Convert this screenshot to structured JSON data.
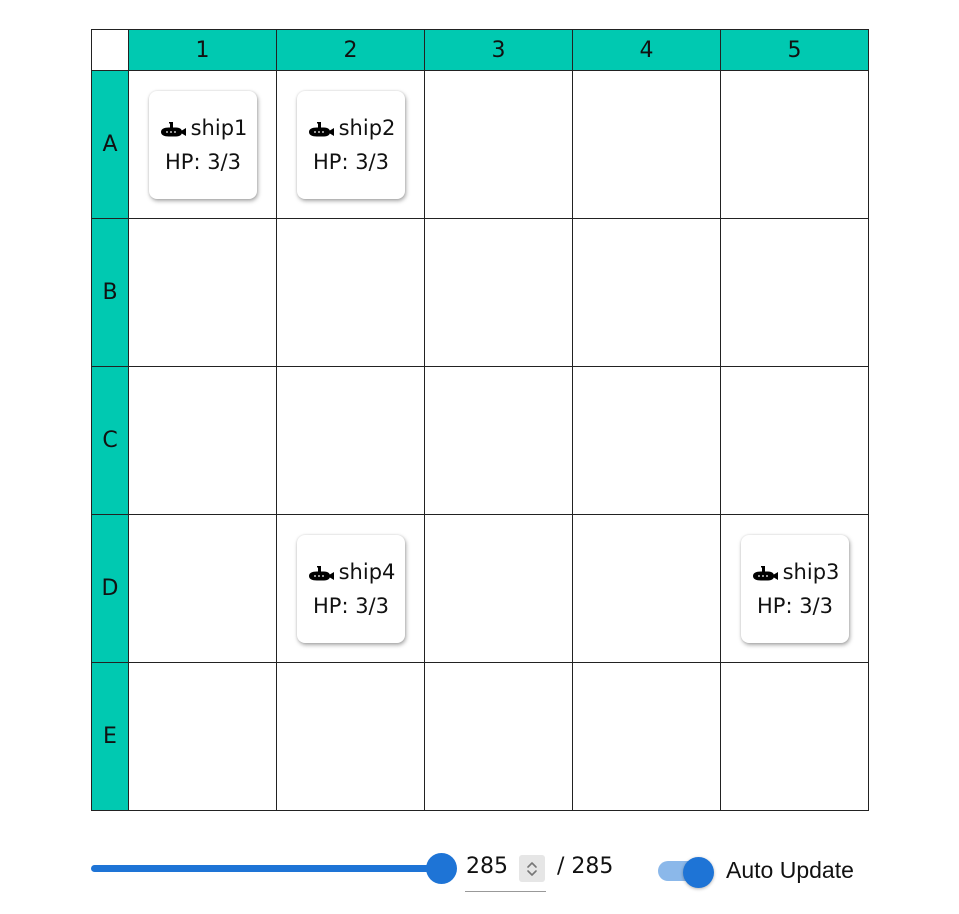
{
  "board": {
    "columns": [
      "1",
      "2",
      "3",
      "4",
      "5"
    ],
    "rows": [
      "A",
      "B",
      "C",
      "D",
      "E"
    ]
  },
  "ships": [
    {
      "name": "ship1",
      "hp": "HP: 3/3",
      "row": "A",
      "col": "1",
      "icon": "submarine-icon"
    },
    {
      "name": "ship2",
      "hp": "HP: 3/3",
      "row": "A",
      "col": "2",
      "icon": "submarine-icon"
    },
    {
      "name": "ship4",
      "hp": "HP: 3/3",
      "row": "D",
      "col": "2",
      "icon": "submarine-icon"
    },
    {
      "name": "ship3",
      "hp": "HP: 3/3",
      "row": "D",
      "col": "5",
      "icon": "submarine-icon"
    }
  ],
  "controls": {
    "step_value": "285",
    "step_total": "/ 285",
    "slider_fraction": 1.0,
    "auto_update_label": "Auto Update",
    "auto_update_on": true
  },
  "colors": {
    "header_bg": "#00c9b1",
    "accent": "#1e74d6",
    "toggle_track": "#8bb8ea"
  }
}
